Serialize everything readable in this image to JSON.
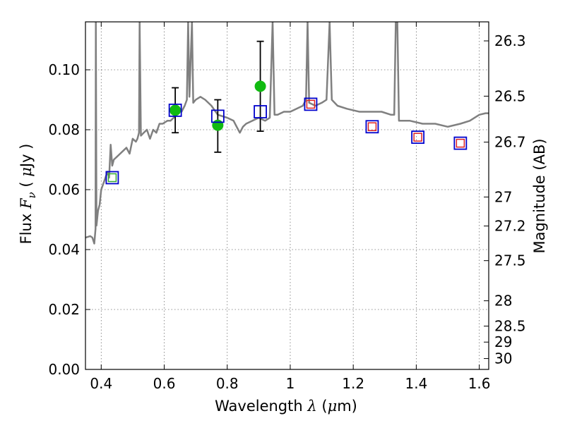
{
  "chart_data": {
    "type": "scatter",
    "xlabel": "Wavelength",
    "xlabel_symbol": "λ",
    "xlabel_unit_open": " (",
    "xlabel_unit_mu": "μ",
    "xlabel_unit_rest": "m)",
    "ylabel": "Flux",
    "ylabel_symbol_F": "F",
    "ylabel_symbol_nu": "ν",
    "ylabel_unit_open": "(",
    "ylabel_unit_mu": "μ",
    "ylabel_unit_rest": "Jy )",
    "y2label": "Magnitude (AB)",
    "xlim": [
      0.35,
      1.63
    ],
    "ylim": [
      0.0,
      0.116
    ],
    "grid": true,
    "xticks": [
      {
        "value": 0.4,
        "label": "0.4"
      },
      {
        "value": 0.6,
        "label": "0.6"
      },
      {
        "value": 0.8,
        "label": "0.8"
      },
      {
        "value": 1.0,
        "label": "1"
      },
      {
        "value": 1.2,
        "label": "1.2"
      },
      {
        "value": 1.4,
        "label": "1.4"
      },
      {
        "value": 1.6,
        "label": "1.6"
      }
    ],
    "yticks": [
      {
        "value": 0.0,
        "label": "0.00"
      },
      {
        "value": 0.02,
        "label": "0.02"
      },
      {
        "value": 0.04,
        "label": "0.04"
      },
      {
        "value": 0.06,
        "label": "0.06"
      },
      {
        "value": 0.08,
        "label": "0.08"
      },
      {
        "value": 0.1,
        "label": "0.10"
      }
    ],
    "mag_ticks": [
      {
        "value": 26.3,
        "label": "26.3"
      },
      {
        "value": 26.5,
        "label": "26.5"
      },
      {
        "value": 26.7,
        "label": "26.7"
      },
      {
        "value": 27.0,
        "label": "27"
      },
      {
        "value": 27.2,
        "label": "27.2"
      },
      {
        "value": 27.5,
        "label": "27.5"
      },
      {
        "value": 28.0,
        "label": "28"
      },
      {
        "value": 28.5,
        "label": "28.5"
      },
      {
        "value": 29.0,
        "label": "29"
      },
      {
        "value": 30.0,
        "label": "30"
      }
    ],
    "template_spectrum": {
      "color": "#808080",
      "points": [
        [
          0.35,
          0.044
        ],
        [
          0.365,
          0.0445
        ],
        [
          0.372,
          0.044
        ],
        [
          0.378,
          0.042
        ],
        [
          0.382,
          0.047
        ],
        [
          0.383,
          0.116
        ],
        [
          0.385,
          0.048
        ],
        [
          0.39,
          0.053
        ],
        [
          0.395,
          0.055
        ],
        [
          0.4,
          0.06
        ],
        [
          0.41,
          0.063
        ],
        [
          0.42,
          0.066
        ],
        [
          0.425,
          0.064
        ],
        [
          0.43,
          0.075
        ],
        [
          0.435,
          0.068
        ],
        [
          0.44,
          0.07
        ],
        [
          0.45,
          0.071
        ],
        [
          0.46,
          0.072
        ],
        [
          0.47,
          0.073
        ],
        [
          0.48,
          0.074
        ],
        [
          0.49,
          0.072
        ],
        [
          0.5,
          0.077
        ],
        [
          0.51,
          0.076
        ],
        [
          0.515,
          0.077
        ],
        [
          0.52,
          0.079
        ],
        [
          0.522,
          0.116
        ],
        [
          0.526,
          0.078
        ],
        [
          0.535,
          0.079
        ],
        [
          0.545,
          0.08
        ],
        [
          0.555,
          0.077
        ],
        [
          0.565,
          0.08
        ],
        [
          0.575,
          0.079
        ],
        [
          0.585,
          0.082
        ],
        [
          0.595,
          0.082
        ],
        [
          0.61,
          0.083
        ],
        [
          0.62,
          0.083
        ],
        [
          0.63,
          0.084
        ],
        [
          0.64,
          0.086
        ],
        [
          0.65,
          0.087
        ],
        [
          0.655,
          0.086
        ],
        [
          0.665,
          0.088
        ],
        [
          0.672,
          0.09
        ],
        [
          0.676,
          0.116
        ],
        [
          0.68,
          0.091
        ],
        [
          0.688,
          0.116
        ],
        [
          0.692,
          0.089
        ],
        [
          0.7,
          0.09
        ],
        [
          0.715,
          0.091
        ],
        [
          0.73,
          0.09
        ],
        [
          0.75,
          0.088
        ],
        [
          0.77,
          0.085
        ],
        [
          0.8,
          0.084
        ],
        [
          0.82,
          0.083
        ],
        [
          0.83,
          0.081
        ],
        [
          0.84,
          0.079
        ],
        [
          0.85,
          0.081
        ],
        [
          0.86,
          0.082
        ],
        [
          0.88,
          0.083
        ],
        [
          0.9,
          0.084
        ],
        [
          0.92,
          0.083
        ],
        [
          0.935,
          0.084
        ],
        [
          0.944,
          0.116
        ],
        [
          0.95,
          0.085
        ],
        [
          0.96,
          0.085
        ],
        [
          0.98,
          0.086
        ],
        [
          1.0,
          0.086
        ],
        [
          1.02,
          0.087
        ],
        [
          1.04,
          0.088
        ],
        [
          1.05,
          0.09
        ],
        [
          1.055,
          0.116
        ],
        [
          1.06,
          0.089
        ],
        [
          1.08,
          0.088
        ],
        [
          1.1,
          0.089
        ],
        [
          1.115,
          0.09
        ],
        [
          1.125,
          0.116
        ],
        [
          1.132,
          0.09
        ],
        [
          1.15,
          0.088
        ],
        [
          1.18,
          0.087
        ],
        [
          1.22,
          0.086
        ],
        [
          1.26,
          0.086
        ],
        [
          1.29,
          0.086
        ],
        [
          1.32,
          0.085
        ],
        [
          1.33,
          0.085
        ],
        [
          1.335,
          0.116
        ],
        [
          1.34,
          0.116
        ],
        [
          1.345,
          0.083
        ],
        [
          1.38,
          0.083
        ],
        [
          1.42,
          0.082
        ],
        [
          1.46,
          0.082
        ],
        [
          1.5,
          0.081
        ],
        [
          1.54,
          0.082
        ],
        [
          1.57,
          0.083
        ],
        [
          1.6,
          0.085
        ],
        [
          1.62,
          0.0855
        ],
        [
          1.63,
          0.0855
        ]
      ]
    },
    "model_points": {
      "marker": "open-square",
      "edge_color": "#0000cc",
      "points": [
        {
          "x": 0.435,
          "y": 0.064
        },
        {
          "x": 0.635,
          "y": 0.0865
        },
        {
          "x": 0.77,
          "y": 0.0845
        },
        {
          "x": 0.905,
          "y": 0.086
        },
        {
          "x": 1.065,
          "y": 0.0885
        },
        {
          "x": 1.26,
          "y": 0.081
        },
        {
          "x": 1.405,
          "y": 0.0775
        },
        {
          "x": 1.54,
          "y": 0.0755
        }
      ]
    },
    "inner_markers": [
      {
        "x": 0.435,
        "y": 0.064,
        "color": "#33aa33"
      },
      {
        "x": 1.065,
        "y": 0.0885,
        "color": "#dd2222"
      },
      {
        "x": 1.26,
        "y": 0.081,
        "color": "#dd2222"
      },
      {
        "x": 1.405,
        "y": 0.0775,
        "color": "#dd2222"
      },
      {
        "x": 1.54,
        "y": 0.0755,
        "color": "#dd2222"
      }
    ],
    "observed_points": {
      "marker": "filled-circle",
      "color": "#11bb11",
      "points": [
        {
          "x": 0.635,
          "y": 0.0865,
          "err_low": 0.079,
          "err_high": 0.094
        },
        {
          "x": 0.77,
          "y": 0.0815,
          "err_low": 0.0725,
          "err_high": 0.09
        },
        {
          "x": 0.905,
          "y": 0.0945,
          "err_low": 0.0795,
          "err_high": 0.1095
        }
      ]
    }
  }
}
